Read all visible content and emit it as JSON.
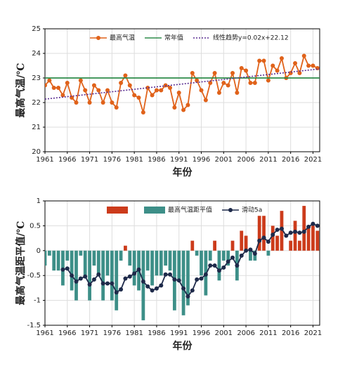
{
  "chart_data": [
    {
      "type": "line",
      "x_label": "年份",
      "y_label": "最高气温/℃",
      "x": [
        1961,
        1962,
        1963,
        1964,
        1965,
        1966,
        1967,
        1968,
        1969,
        1970,
        1971,
        1972,
        1973,
        1974,
        1975,
        1976,
        1977,
        1978,
        1979,
        1980,
        1981,
        1982,
        1983,
        1984,
        1985,
        1986,
        1987,
        1988,
        1989,
        1990,
        1991,
        1992,
        1993,
        1994,
        1995,
        1996,
        1997,
        1998,
        1999,
        2000,
        2001,
        2002,
        2003,
        2004,
        2005,
        2006,
        2007,
        2008,
        2009,
        2010,
        2011,
        2012,
        2013,
        2014,
        2015,
        2016,
        2017,
        2018,
        2019,
        2020,
        2021,
        2022
      ],
      "xlim": [
        1961,
        2022.5
      ],
      "xticks": [
        1961,
        1966,
        1971,
        1976,
        1981,
        1986,
        1991,
        1996,
        2001,
        2006,
        2011,
        2016,
        2021
      ],
      "ylim": [
        20,
        25
      ],
      "yticks": [
        20,
        21,
        22,
        23,
        24,
        25
      ],
      "grid": true,
      "legend": "top",
      "series": [
        {
          "name": "最高气温",
          "type": "line",
          "marker": true,
          "color": "#e0621a",
          "values": [
            22.7,
            22.9,
            22.6,
            22.6,
            22.3,
            22.8,
            22.2,
            22.0,
            22.9,
            22.5,
            22.0,
            22.7,
            22.5,
            22.0,
            22.5,
            22.0,
            21.8,
            22.8,
            23.1,
            22.7,
            22.3,
            22.2,
            21.6,
            22.6,
            22.3,
            22.5,
            22.5,
            22.7,
            22.6,
            21.8,
            22.4,
            21.7,
            21.9,
            23.2,
            22.9,
            22.5,
            22.1,
            22.8,
            23.2,
            22.4,
            22.8,
            22.7,
            23.2,
            22.4,
            23.4,
            23.3,
            22.8,
            22.8,
            23.7,
            23.7,
            22.9,
            23.5,
            23.3,
            23.8,
            23.0,
            23.2,
            23.6,
            23.2,
            23.9,
            23.5,
            23.5,
            23.4
          ]
        },
        {
          "name": "常年值",
          "type": "line",
          "color": "#2e8b4a",
          "x": [
            1961,
            2022.5
          ],
          "values": [
            23.0,
            23.0
          ]
        },
        {
          "name": "线性趋势y=0.02x+22.12",
          "type": "line",
          "dash": true,
          "color": "#5a2d91",
          "x": [
            1961,
            2022.5
          ],
          "values": [
            22.14,
            23.37
          ]
        }
      ]
    },
    {
      "type": "bar",
      "x_label": "年份",
      "y_label": "最高气温距平值/℃",
      "x": [
        1961,
        1962,
        1963,
        1964,
        1965,
        1966,
        1967,
        1968,
        1969,
        1970,
        1971,
        1972,
        1973,
        1974,
        1975,
        1976,
        1977,
        1978,
        1979,
        1980,
        1981,
        1982,
        1983,
        1984,
        1985,
        1986,
        1987,
        1988,
        1989,
        1990,
        1991,
        1992,
        1993,
        1994,
        1995,
        1996,
        1997,
        1998,
        1999,
        2000,
        2001,
        2002,
        2003,
        2004,
        2005,
        2006,
        2007,
        2008,
        2009,
        2010,
        2011,
        2012,
        2013,
        2014,
        2015,
        2016,
        2017,
        2018,
        2019,
        2020,
        2021,
        2022
      ],
      "xlim": [
        1961,
        2022.5
      ],
      "xticks": [
        1961,
        1966,
        1971,
        1976,
        1981,
        1986,
        1991,
        1996,
        2001,
        2006,
        2011,
        2016,
        2021
      ],
      "ylim": [
        -1.5,
        1
      ],
      "yticks": [
        -1.5,
        -1,
        -0.5,
        0,
        0.5,
        1
      ],
      "grid": true,
      "legend": "top",
      "series": [
        {
          "name": "最高气温距平值",
          "type": "bar",
          "color": "#3d8f88",
          "positive_color": "#cc3b1b",
          "values": [
            -0.3,
            -0.1,
            -0.4,
            -0.4,
            -0.7,
            -0.2,
            -0.8,
            -1.0,
            -0.1,
            -0.5,
            -1.0,
            -0.3,
            -0.5,
            -1.0,
            -0.5,
            -1.0,
            -1.2,
            -0.2,
            0.1,
            -0.3,
            -0.7,
            -0.8,
            -1.4,
            -0.4,
            -0.7,
            -0.5,
            -0.5,
            -0.3,
            -0.4,
            -1.2,
            -0.6,
            -1.3,
            -1.1,
            0.2,
            -0.1,
            -0.5,
            -0.9,
            -0.2,
            0.2,
            -0.6,
            -0.2,
            -0.3,
            0.2,
            -0.6,
            0.4,
            0.3,
            -0.2,
            -0.2,
            0.7,
            0.7,
            -0.1,
            0.5,
            0.3,
            0.8,
            0.0,
            0.2,
            0.6,
            0.2,
            0.9,
            0.5,
            0.5,
            0.4
          ]
        },
        {
          "name": "滑动5a",
          "type": "line",
          "marker": true,
          "color": "#1e2a4a",
          "values": [
            null,
            null,
            null,
            null,
            -0.38,
            -0.36,
            -0.5,
            -0.62,
            -0.56,
            -0.52,
            -0.68,
            -0.58,
            -0.48,
            -0.66,
            -0.66,
            -0.66,
            -0.84,
            -0.78,
            -0.56,
            -0.52,
            -0.46,
            -0.38,
            -0.62,
            -0.72,
            -0.8,
            -0.76,
            -0.7,
            -0.48,
            -0.48,
            -0.58,
            -0.6,
            -0.76,
            -0.92,
            -0.8,
            -0.58,
            -0.56,
            -0.48,
            -0.3,
            -0.3,
            -0.4,
            -0.34,
            -0.22,
            -0.14,
            -0.3,
            -0.1,
            0.0,
            0.02,
            -0.06,
            0.2,
            0.26,
            0.18,
            0.32,
            0.42,
            0.44,
            0.3,
            0.36,
            0.38,
            0.36,
            0.38,
            0.48,
            0.54,
            0.5
          ]
        }
      ]
    }
  ]
}
